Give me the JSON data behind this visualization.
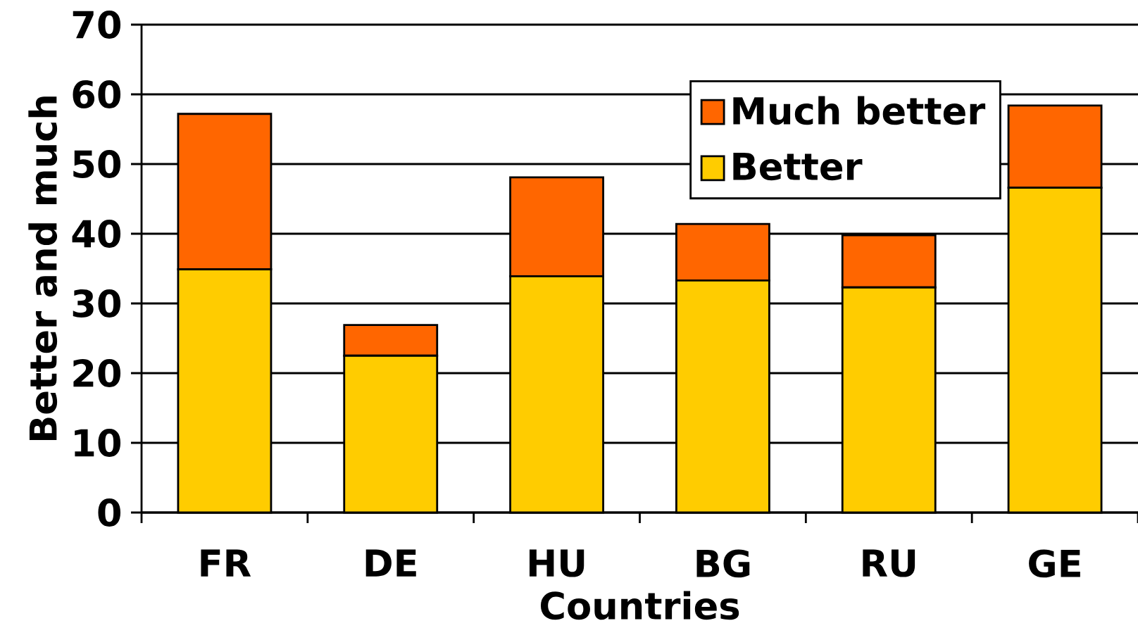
{
  "chart_data": {
    "type": "bar",
    "stacked": true,
    "categories": [
      "FR",
      "DE",
      "HU",
      "BG",
      "RU",
      "GE"
    ],
    "series": [
      {
        "name": "Better",
        "color": "#ffcc00",
        "values": [
          34.9,
          22.5,
          33.9,
          33.3,
          32.3,
          46.6
        ]
      },
      {
        "name": "Much better",
        "color": "#ff6600",
        "values": [
          22.3,
          4.4,
          14.2,
          8.1,
          7.5,
          11.8
        ]
      }
    ],
    "xlabel": "Countries",
    "ylabel": "Better and much",
    "ylim": [
      0,
      70
    ],
    "yticks": [
      0,
      10,
      20,
      30,
      40,
      50,
      60,
      70
    ],
    "grid": "y",
    "legend": "top right"
  }
}
